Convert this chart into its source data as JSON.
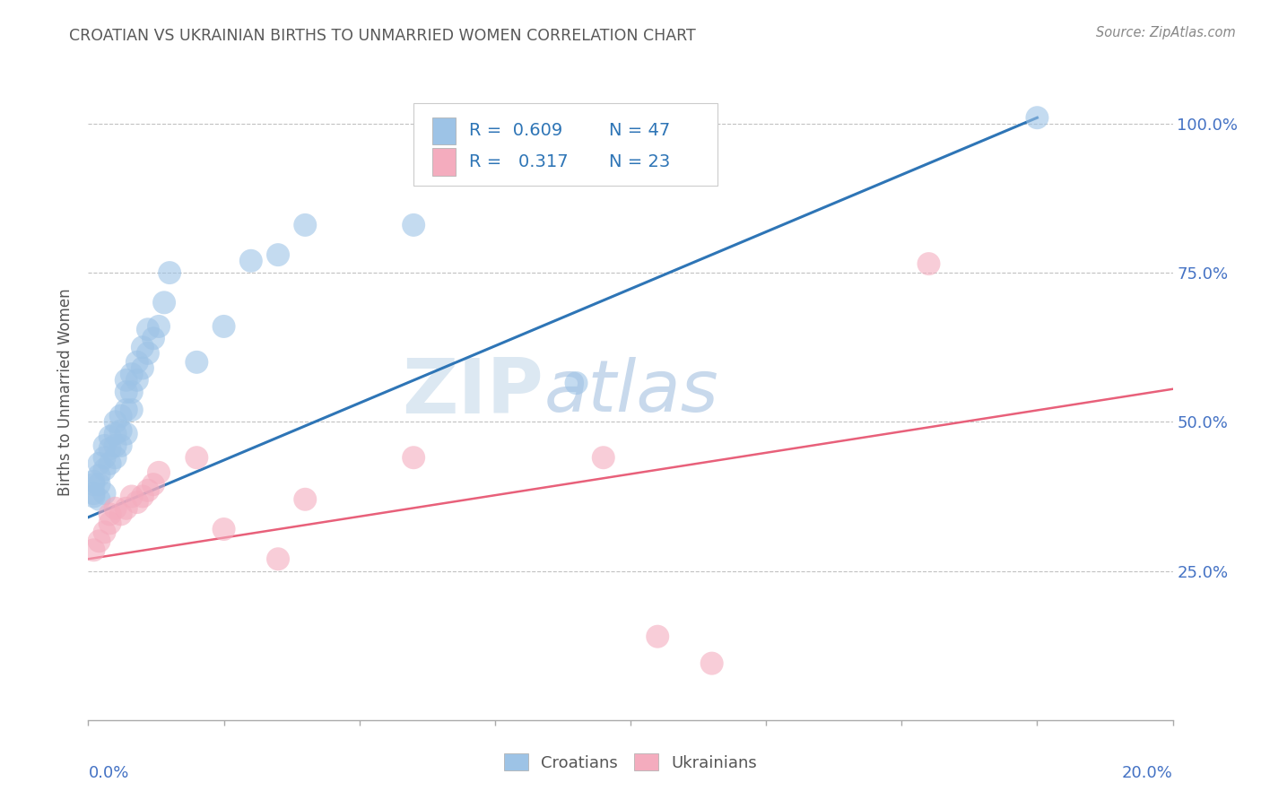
{
  "title": "CROATIAN VS UKRAINIAN BIRTHS TO UNMARRIED WOMEN CORRELATION CHART",
  "source": "Source: ZipAtlas.com",
  "ylabel": "Births to Unmarried Women",
  "right_yticklabels": [
    "25.0%",
    "50.0%",
    "75.0%",
    "100.0%"
  ],
  "right_ytick_vals": [
    0.25,
    0.5,
    0.75,
    1.0
  ],
  "croatians_R": 0.609,
  "croatians_N": 47,
  "ukrainians_R": 0.317,
  "ukrainians_N": 23,
  "blue_color": "#9dc3e6",
  "pink_color": "#f4acbe",
  "blue_line_color": "#2e75b6",
  "pink_line_color": "#e8607a",
  "legend_R_color": "#2e75b6",
  "title_color": "#595959",
  "axis_color": "#4472c4",
  "grid_color": "#b2b2b2",
  "watermark_zip_color": "#dce6f1",
  "watermark_atlas_color": "#c5d4e8",
  "cr_x": [
    0.001,
    0.001,
    0.001,
    0.001,
    0.002,
    0.002,
    0.002,
    0.002,
    0.003,
    0.003,
    0.003,
    0.003,
    0.004,
    0.004,
    0.004,
    0.005,
    0.005,
    0.005,
    0.005,
    0.006,
    0.006,
    0.006,
    0.007,
    0.007,
    0.007,
    0.007,
    0.008,
    0.008,
    0.008,
    0.009,
    0.009,
    0.01,
    0.01,
    0.011,
    0.011,
    0.012,
    0.013,
    0.014,
    0.015,
    0.02,
    0.025,
    0.03,
    0.035,
    0.04,
    0.06,
    0.09,
    0.175
  ],
  "cr_y": [
    0.375,
    0.38,
    0.395,
    0.4,
    0.37,
    0.395,
    0.41,
    0.43,
    0.38,
    0.42,
    0.44,
    0.46,
    0.43,
    0.455,
    0.475,
    0.44,
    0.46,
    0.48,
    0.5,
    0.46,
    0.485,
    0.51,
    0.48,
    0.52,
    0.55,
    0.57,
    0.52,
    0.55,
    0.58,
    0.57,
    0.6,
    0.59,
    0.625,
    0.615,
    0.655,
    0.64,
    0.66,
    0.7,
    0.75,
    0.6,
    0.66,
    0.77,
    0.78,
    0.83,
    0.83,
    0.565,
    1.01
  ],
  "uk_x": [
    0.001,
    0.002,
    0.003,
    0.004,
    0.004,
    0.005,
    0.006,
    0.007,
    0.008,
    0.009,
    0.01,
    0.011,
    0.012,
    0.013,
    0.02,
    0.025,
    0.035,
    0.04,
    0.06,
    0.095,
    0.105,
    0.115,
    0.155
  ],
  "uk_y": [
    0.285,
    0.3,
    0.315,
    0.33,
    0.345,
    0.355,
    0.345,
    0.355,
    0.375,
    0.365,
    0.375,
    0.385,
    0.395,
    0.415,
    0.44,
    0.32,
    0.27,
    0.37,
    0.44,
    0.44,
    0.14,
    0.095,
    0.765
  ],
  "xlim": [
    0.0,
    0.2
  ],
  "ylim": [
    0.0,
    1.1
  ],
  "blue_line_x0": 0.0,
  "blue_line_y0": 0.34,
  "blue_line_x1": 0.175,
  "blue_line_y1": 1.01,
  "pink_line_x0": 0.0,
  "pink_line_y0": 0.27,
  "pink_line_x1": 0.2,
  "pink_line_y1": 0.555
}
